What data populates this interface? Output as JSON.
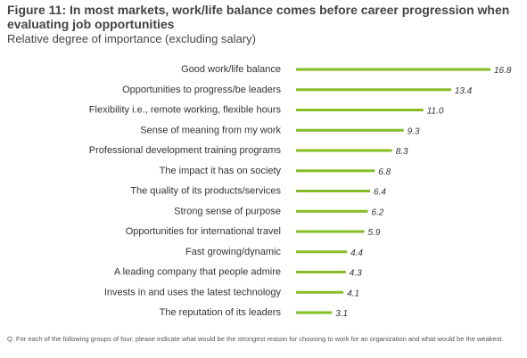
{
  "figure": {
    "title": "Figure 11: In most markets, work/life balance comes before career progression when evaluating job opportunities",
    "subtitle": "Relative degree of importance (excluding salary)",
    "footnote": "Q. For each of the following groups of four, please indicate what would be the strongest reason for choosing to work for an organization and what would be the weakest."
  },
  "colors": {
    "bar": "#86bc25",
    "text": "#333333"
  },
  "chart_data": {
    "type": "bar",
    "orientation": "horizontal",
    "title": "Figure 11: In most markets, work/life balance comes before career progression when evaluating job opportunities",
    "subtitle": "Relative degree of importance (excluding salary)",
    "categories": [
      "Good work/life balance",
      "Opportunities to progress/be leaders",
      "Flexibility i.e., remote working, flexible hours",
      "Sense of meaning from my work",
      "Professional development training programs",
      "The impact it has on society",
      "The quality of its products/services",
      "Strong sense of purpose",
      "Opportunities for international travel",
      "Fast growing/dynamic",
      "A leading company that people admire",
      "Invests in and uses the latest technology",
      "The reputation of its leaders"
    ],
    "values": [
      16.8,
      13.4,
      11.0,
      9.3,
      8.3,
      6.8,
      6.4,
      6.2,
      5.9,
      4.4,
      4.3,
      4.1,
      3.1
    ],
    "value_labels": [
      "16.8",
      "13.4",
      "11.0",
      "9.3",
      "8.3",
      "6.8",
      "6.4",
      "6.2",
      "5.9",
      "4.4",
      "4.3",
      "4.1",
      "3.1"
    ],
    "xlim": [
      0,
      16.8
    ],
    "grid": false,
    "legend": "none",
    "xlabel": "",
    "ylabel": ""
  }
}
